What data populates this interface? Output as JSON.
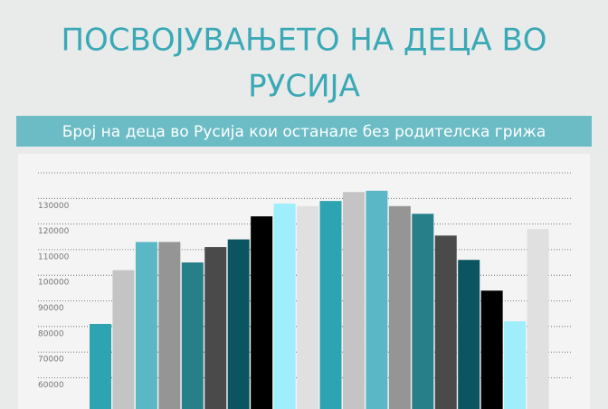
{
  "chart_data": {
    "type": "bar",
    "title": "ПОСВОЈУВАЊЕТО НА ДЕЦА ВО РУСИЈА",
    "subtitle": "Број на деца во Русија кои останале без родителска грижа",
    "categories": [
      null,
      null,
      null,
      null,
      null,
      null,
      null,
      null,
      null,
      null,
      null,
      null,
      null,
      null,
      null,
      null,
      null,
      null,
      null,
      null
    ],
    "values": [
      81000,
      102000,
      113000,
      113000,
      105000,
      111000,
      114000,
      123000,
      128000,
      127000,
      129000,
      132500,
      133000,
      127000,
      124000,
      115500,
      106000,
      94000,
      82000,
      118000
    ],
    "colors": [
      "#2ea3b1",
      "#c4c4c4",
      "#5ab8c6",
      "#959595",
      "#267f89",
      "#4a4a4a",
      "#0a5560",
      "#000000",
      "#9feefc",
      "#e0e0e0",
      "#2ea3b1",
      "#c4c4c4",
      "#5ab8c6",
      "#959595",
      "#267f89",
      "#4a4a4a",
      "#0a5560",
      "#000000",
      "#9feefc",
      "#e0e0e0"
    ],
    "ylim": [
      50000,
      140000
    ],
    "yticks": [
      60000,
      70000,
      80000,
      90000,
      100000,
      110000,
      120000,
      130000
    ],
    "grid": true
  }
}
